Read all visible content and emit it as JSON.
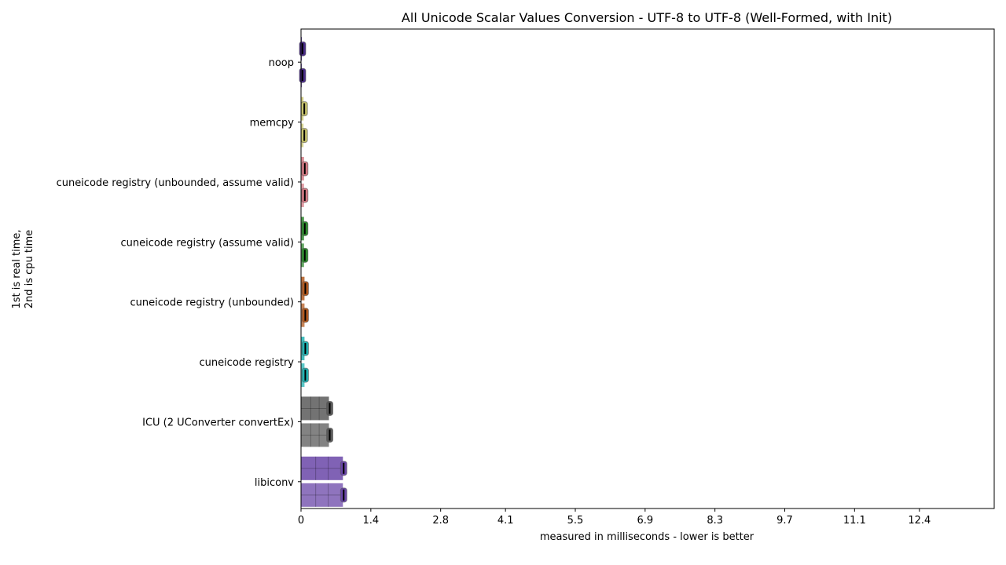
{
  "chart_data": {
    "type": "bar",
    "orientation": "horizontal",
    "title": "All Unicode Scalar Values Conversion - UTF-8 to UTF-8 (Well-Formed, with Init)",
    "xlabel": "measured in milliseconds - lower is better",
    "ylabel_lines": [
      "1st is real time,",
      "2nd is cpu time"
    ],
    "xlim": [
      0,
      13.9
    ],
    "xticks": [
      0,
      1.4,
      2.8,
      4.1,
      5.5,
      6.9,
      8.3,
      9.7,
      11.1,
      12.4
    ],
    "xtick_labels": [
      "0",
      "1.4",
      "2.8",
      "4.1",
      "5.5",
      "6.9",
      "8.3",
      "9.7",
      "11.1",
      "12.4"
    ],
    "grid": false,
    "categories": [
      "noop",
      "memcpy",
      "cuneicode registry (unbounded, assume valid)",
      "cuneicode registry (assume valid)",
      "cuneicode registry (unbounded)",
      "cuneicode registry",
      "ICU (2 UConverter convertEx)",
      "libiconv"
    ],
    "series": [
      {
        "values": [
          0.012,
          0.05,
          0.06,
          0.06,
          0.07,
          0.07,
          0.56,
          0.84
        ]
      },
      {
        "values": [
          0.012,
          0.05,
          0.06,
          0.06,
          0.07,
          0.07,
          0.56,
          0.84
        ]
      }
    ],
    "colors": [
      "#4b2d8a",
      "#c8c46e",
      "#d47a84",
      "#2f8a2f",
      "#b35a1f",
      "#22b3b3",
      "#5a5a5a",
      "#6a46a8"
    ]
  }
}
